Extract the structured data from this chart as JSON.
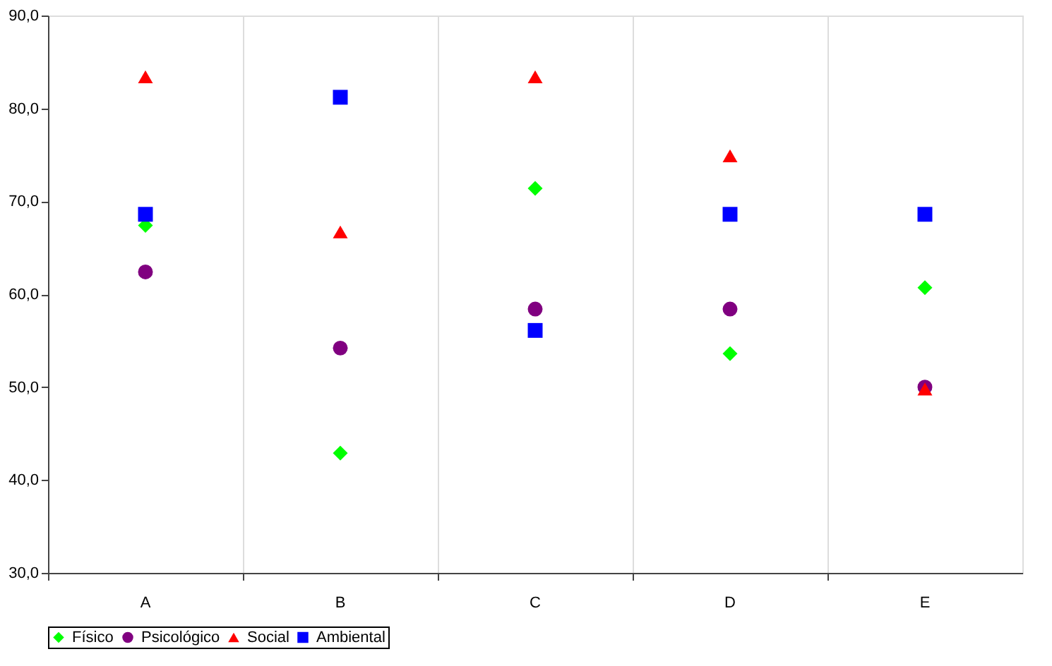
{
  "chart_data": {
    "type": "scatter",
    "categories": [
      "A",
      "B",
      "C",
      "D",
      "E"
    ],
    "series": [
      {
        "name": "Físico",
        "color": "#00ff00",
        "marker": "diamond",
        "values": [
          67.4,
          42.9,
          71.4,
          53.6,
          60.7
        ]
      },
      {
        "name": "Psicológico",
        "color": "#800080",
        "marker": "circle",
        "values": [
          62.4,
          54.2,
          58.4,
          58.4,
          50.0
        ]
      },
      {
        "name": "Social",
        "color": "#ff0000",
        "marker": "triangle",
        "values": [
          83.4,
          66.7,
          83.4,
          74.9,
          49.8
        ]
      },
      {
        "name": "Ambiental",
        "color": "#0000ff",
        "marker": "square",
        "values": [
          68.6,
          81.2,
          56.1,
          68.6,
          68.6
        ]
      }
    ],
    "ylim": [
      30,
      90
    ],
    "yticks": [
      {
        "value": 30,
        "label": "30,0"
      },
      {
        "value": 40,
        "label": "40,0"
      },
      {
        "value": 50,
        "label": "50,0"
      },
      {
        "value": 60,
        "label": "60,0"
      },
      {
        "value": 70,
        "label": "70,0"
      },
      {
        "value": 80,
        "label": "80,0"
      },
      {
        "value": 90,
        "label": "90,0"
      }
    ],
    "grid": "x",
    "legend": "bottom"
  }
}
